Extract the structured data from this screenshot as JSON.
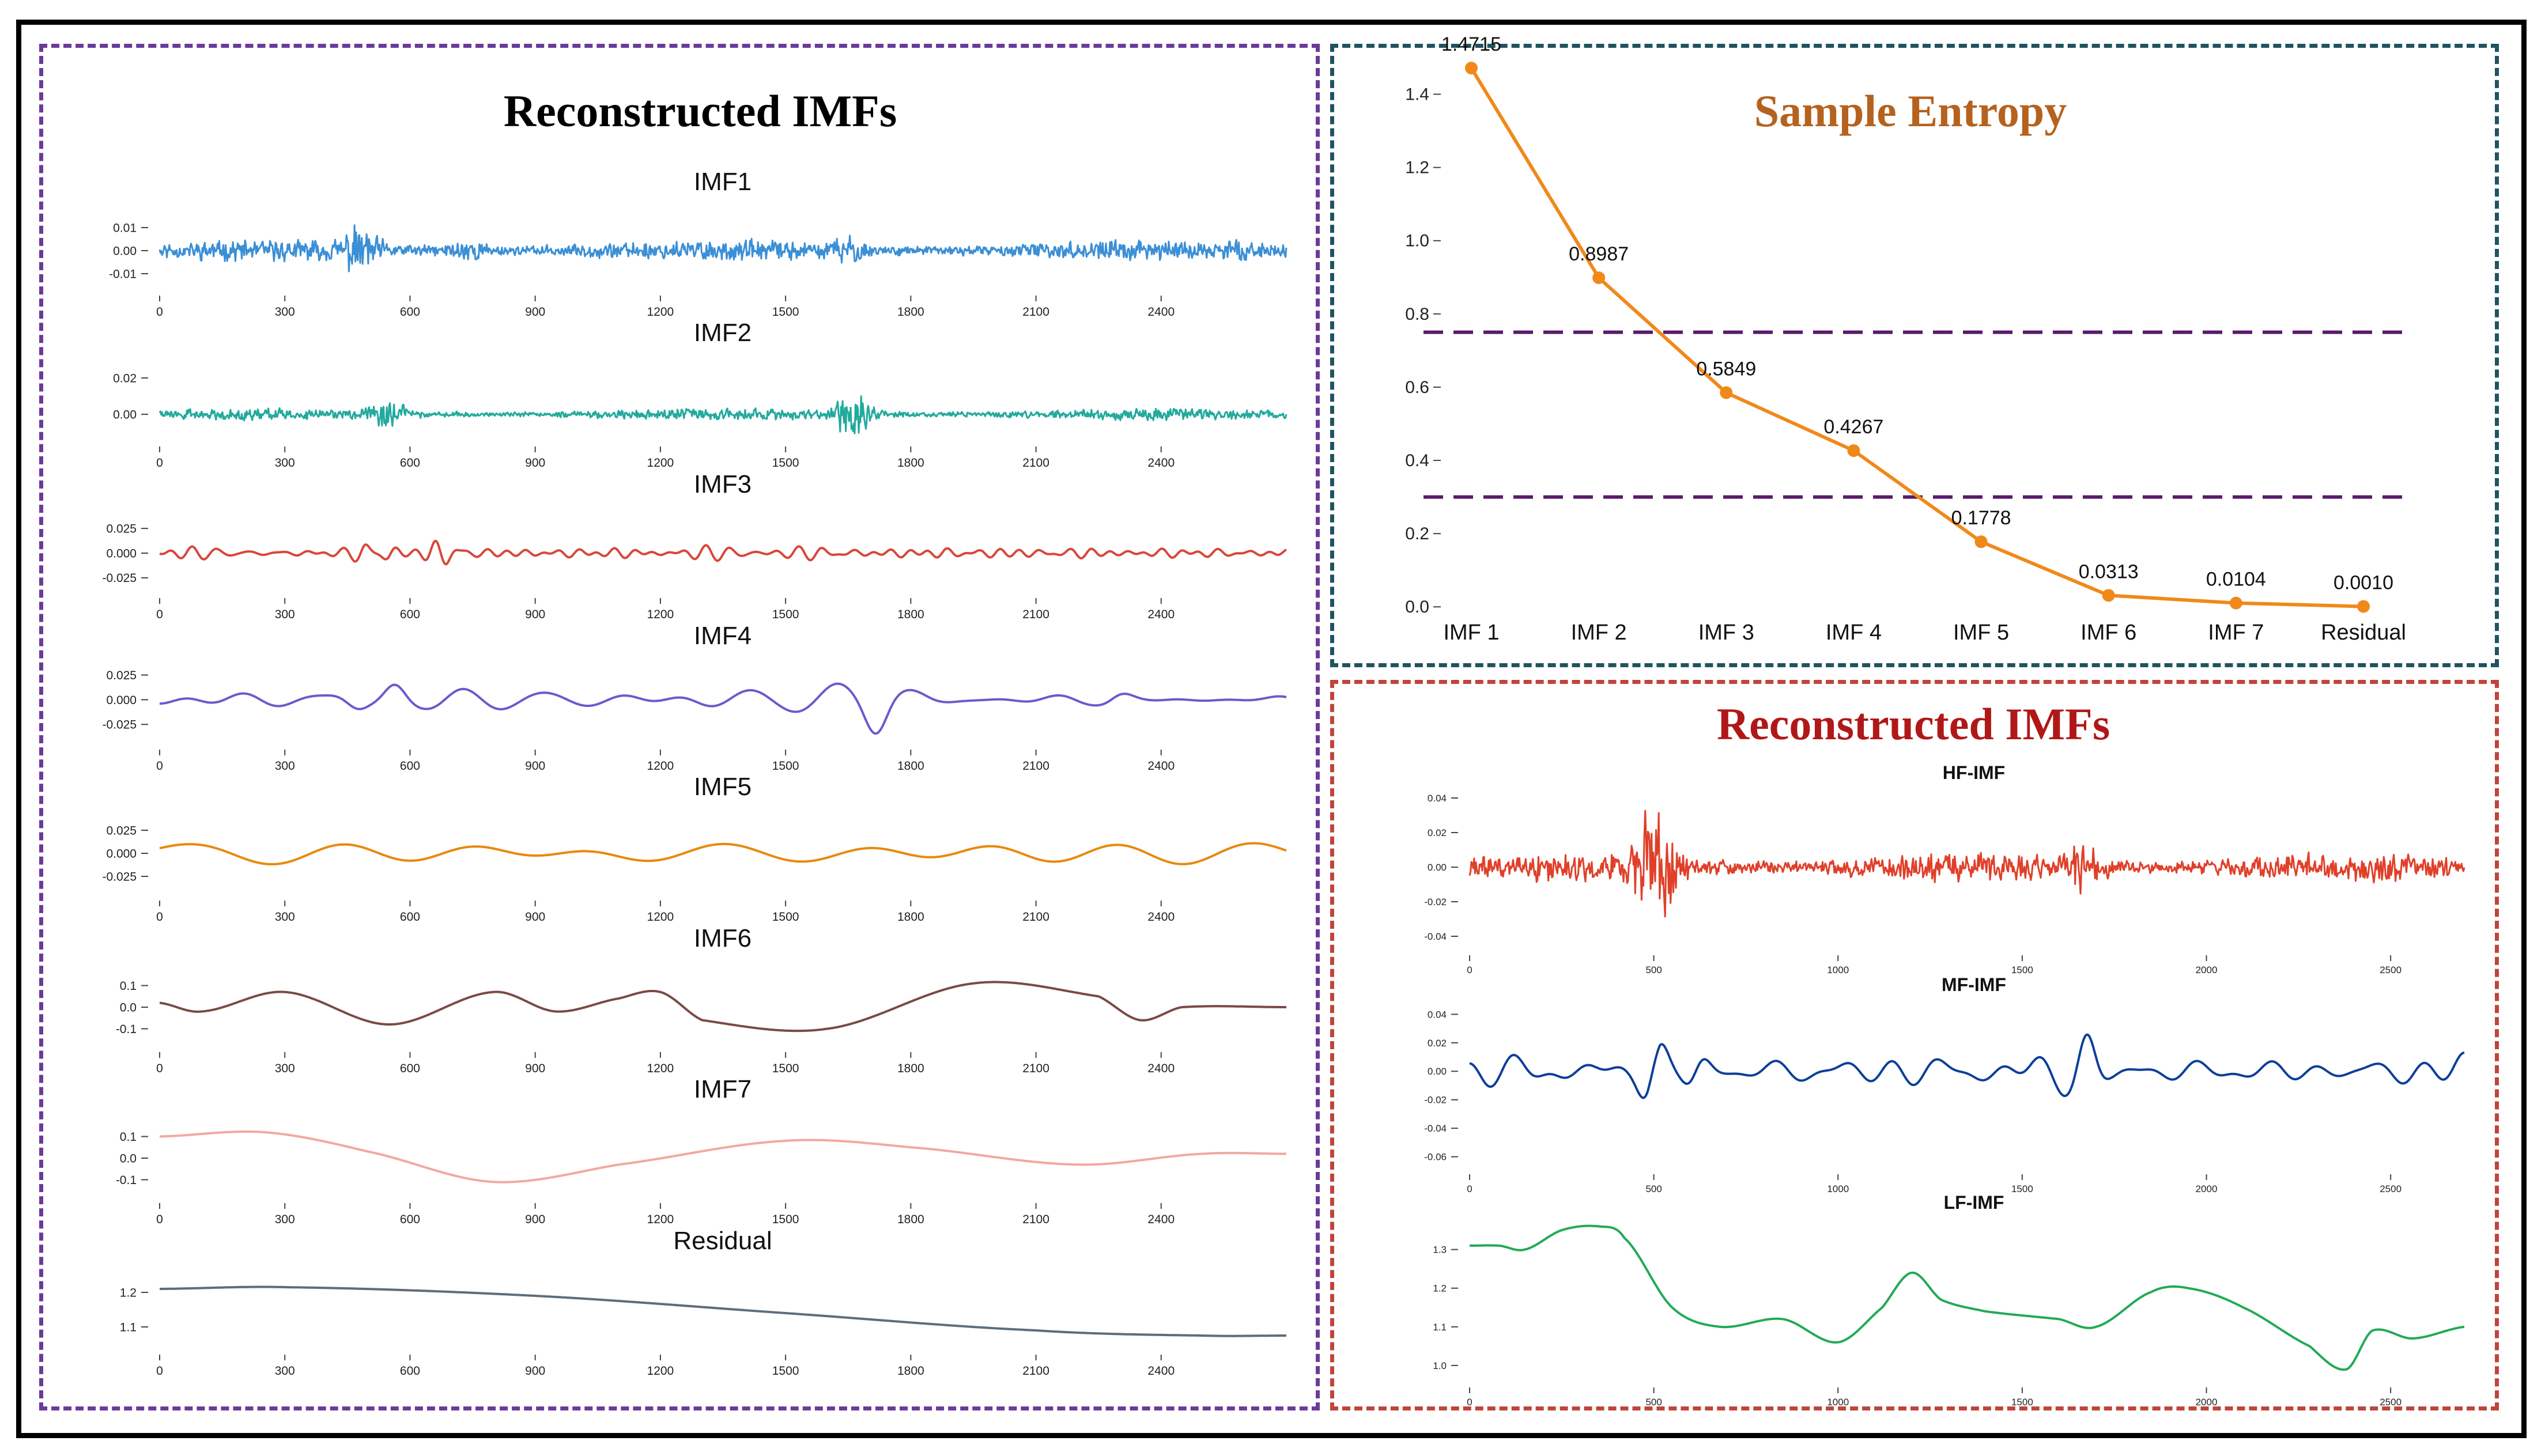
{
  "colors": {
    "imf1": "#3b8fd6",
    "imf2": "#22aa9e",
    "imf3": "#d8473a",
    "imf4": "#6a5acd",
    "imf5": "#e8890c",
    "imf6": "#7a4a45",
    "imf7": "#f2a8a2",
    "residual": "#5f6d7a",
    "entropy_line": "#f0891a",
    "threshold": "#5a1a6a",
    "hf": "#e0402a",
    "mf": "#0c3f9a",
    "lf": "#22aa55",
    "title_left": "#000000",
    "title_entropy": "#b5621e",
    "title_right": "#b01818"
  },
  "panels": {
    "left_title": "Reconstructed IMFs",
    "entropy_title": "Sample Entropy",
    "right_title": "Reconstructed IMFs"
  },
  "chart_data": [
    {
      "id": "imfs",
      "type": "line",
      "x_ticks": [
        0,
        300,
        600,
        900,
        1200,
        1500,
        1800,
        2100,
        2400
      ],
      "x_range": [
        0,
        2700
      ],
      "series": [
        {
          "name": "IMF1",
          "y_ticks": [
            "0.01",
            "0.00",
            "-0.01"
          ],
          "y_values": [
            0.01,
            0.0,
            -0.01
          ],
          "ylim": [
            -0.015,
            0.015
          ],
          "shape": "noise",
          "seed": 11,
          "amp": 0.005,
          "freq": 9,
          "bursts": [
            [
              480,
              0.01
            ],
            [
              740,
              0.009
            ],
            [
              1650,
              0.006
            ]
          ]
        },
        {
          "name": "IMF2",
          "y_ticks": [
            "0.02",
            "0.00"
          ],
          "y_values": [
            0.02,
            0.0
          ],
          "ylim": [
            -0.012,
            0.026
          ],
          "shape": "noise",
          "seed": 22,
          "amp": 0.0035,
          "freq": 5,
          "bursts": [
            [
              550,
              0.008
            ],
            [
              1660,
              0.02
            ]
          ]
        },
        {
          "name": "IMF3",
          "y_ticks": [
            "0.025",
            "0.000",
            "-0.025"
          ],
          "y_values": [
            0.025,
            0.0,
            -0.025
          ],
          "ylim": [
            -0.035,
            0.035
          ],
          "shape": "osc",
          "seed": 33,
          "amp": 0.009,
          "freq": 1.05,
          "bursts": [
            [
              520,
              0.03
            ],
            [
              680,
              0.02
            ]
          ]
        },
        {
          "name": "IMF4",
          "y_ticks": [
            "0.025",
            "0.000",
            "-0.025"
          ],
          "y_values": [
            0.025,
            0.0,
            -0.025
          ],
          "ylim": [
            -0.04,
            0.03
          ],
          "shape": "osc",
          "seed": 44,
          "amp": 0.012,
          "freq": 0.42,
          "bursts": [
            [
              460,
              0.025
            ],
            [
              560,
              0.022
            ],
            [
              1720,
              0.015
            ],
            [
              2300,
              0.014
            ]
          ]
        },
        {
          "name": "IMF5",
          "y_ticks": [
            "0.025",
            "0.000",
            "-0.025"
          ],
          "y_values": [
            0.025,
            0.0,
            -0.025
          ],
          "ylim": [
            -0.04,
            0.035
          ],
          "shape": "osc",
          "seed": 55,
          "amp": 0.018,
          "freq": 0.16,
          "bursts": []
        },
        {
          "name": "IMF6",
          "y_ticks": [
            "0.1",
            "0.0",
            "-0.1"
          ],
          "y_values": [
            0.1,
            0.0,
            -0.1
          ],
          "ylim": [
            -0.16,
            0.16
          ],
          "shape": "points",
          "points": [
            [
              0,
              0.02
            ],
            [
              100,
              -0.02
            ],
            [
              300,
              0.07
            ],
            [
              550,
              -0.08
            ],
            [
              800,
              0.07
            ],
            [
              950,
              -0.02
            ],
            [
              1100,
              0.04
            ],
            [
              1200,
              0.07
            ],
            [
              1300,
              -0.06
            ],
            [
              1600,
              -0.1
            ],
            [
              1950,
              0.11
            ],
            [
              2250,
              0.05
            ],
            [
              2350,
              -0.06
            ],
            [
              2450,
              0.0
            ],
            [
              2700,
              0.0
            ]
          ]
        },
        {
          "name": "IMF7",
          "y_ticks": [
            "0.1",
            "0.0",
            "-0.1"
          ],
          "y_values": [
            0.1,
            0.0,
            -0.1
          ],
          "ylim": [
            -0.16,
            0.16
          ],
          "shape": "points",
          "points": [
            [
              0,
              0.1
            ],
            [
              250,
              0.12
            ],
            [
              500,
              0.03
            ],
            [
              800,
              -0.11
            ],
            [
              1100,
              -0.03
            ],
            [
              1500,
              0.08
            ],
            [
              1800,
              0.05
            ],
            [
              2200,
              -0.03
            ],
            [
              2500,
              0.02
            ],
            [
              2700,
              0.02
            ]
          ]
        },
        {
          "name": "Residual",
          "y_ticks": [
            "1.2",
            "1.1"
          ],
          "y_values": [
            1.2,
            1.1
          ],
          "ylim": [
            1.05,
            1.25
          ],
          "shape": "points",
          "points": [
            [
              0,
              1.21
            ],
            [
              300,
              1.215
            ],
            [
              900,
              1.19
            ],
            [
              1500,
              1.14
            ],
            [
              2100,
              1.09
            ],
            [
              2500,
              1.075
            ],
            [
              2700,
              1.075
            ]
          ]
        }
      ]
    },
    {
      "id": "entropy",
      "type": "line",
      "categories": [
        "IMF 1",
        "IMF 2",
        "IMF 3",
        "IMF 4",
        "IMF 5",
        "IMF 6",
        "IMF 7",
        "Residual"
      ],
      "values": [
        1.4715,
        0.8987,
        0.5849,
        0.4267,
        0.1778,
        0.0313,
        0.0104,
        0.001
      ],
      "value_labels": [
        "1.4715",
        "0.8987",
        "0.5849",
        "0.4267",
        "0.1778",
        "0.0313",
        "0.0104",
        "0.0010"
      ],
      "y_ticks": [
        "0.0",
        "0.2",
        "0.4",
        "0.6",
        "0.8",
        "1.0",
        "1.2",
        "1.4"
      ],
      "y_values": [
        0.0,
        0.2,
        0.4,
        0.6,
        0.8,
        1.0,
        1.2,
        1.4
      ],
      "ylim": [
        -0.05,
        1.5
      ],
      "thresholds": [
        0.75,
        0.3
      ]
    },
    {
      "id": "reconstructed",
      "type": "line",
      "x_ticks": [
        0,
        500,
        1000,
        1500,
        2000,
        2500
      ],
      "x_range": [
        0,
        2700
      ],
      "series": [
        {
          "name": "HF-IMF",
          "y_ticks": [
            "0.04",
            "0.02",
            "0.00",
            "-0.02",
            "-0.04"
          ],
          "y_values": [
            0.04,
            0.02,
            0.0,
            -0.02,
            -0.04
          ],
          "ylim": [
            -0.045,
            0.045
          ],
          "shape": "noise",
          "seed": 66,
          "amp": 0.009,
          "freq": 4,
          "bursts": [
            [
              480,
              0.025
            ],
            [
              530,
              0.03
            ],
            [
              1680,
              0.03
            ]
          ]
        },
        {
          "name": "MF-IMF",
          "y_ticks": [
            "0.04",
            "0.02",
            "0.00",
            "-0.02",
            "-0.04",
            "-0.06"
          ],
          "y_values": [
            0.04,
            0.02,
            0.0,
            -0.02,
            -0.04,
            -0.06
          ],
          "ylim": [
            -0.065,
            0.045
          ],
          "shape": "osc",
          "seed": 77,
          "amp": 0.014,
          "freq": 0.45,
          "bursts": [
            [
              500,
              0.035
            ],
            [
              620,
              0.03
            ],
            [
              1680,
              0.02
            ]
          ]
        },
        {
          "name": "LF-IMF",
          "y_ticks": [
            "1.3",
            "1.2",
            "1.1",
            "1.0"
          ],
          "y_values": [
            1.3,
            1.2,
            1.1,
            1.0
          ],
          "ylim": [
            0.97,
            1.38
          ],
          "shape": "points",
          "points": [
            [
              0,
              1.31
            ],
            [
              80,
              1.31
            ],
            [
              150,
              1.3
            ],
            [
              250,
              1.35
            ],
            [
              350,
              1.36
            ],
            [
              420,
              1.33
            ],
            [
              550,
              1.15
            ],
            [
              680,
              1.1
            ],
            [
              850,
              1.12
            ],
            [
              1000,
              1.06
            ],
            [
              1120,
              1.15
            ],
            [
              1200,
              1.24
            ],
            [
              1280,
              1.17
            ],
            [
              1400,
              1.14
            ],
            [
              1600,
              1.12
            ],
            [
              1700,
              1.1
            ],
            [
              1850,
              1.19
            ],
            [
              1950,
              1.2
            ],
            [
              2100,
              1.15
            ],
            [
              2280,
              1.05
            ],
            [
              2380,
              0.99
            ],
            [
              2450,
              1.09
            ],
            [
              2560,
              1.07
            ],
            [
              2700,
              1.1
            ]
          ]
        }
      ]
    }
  ]
}
